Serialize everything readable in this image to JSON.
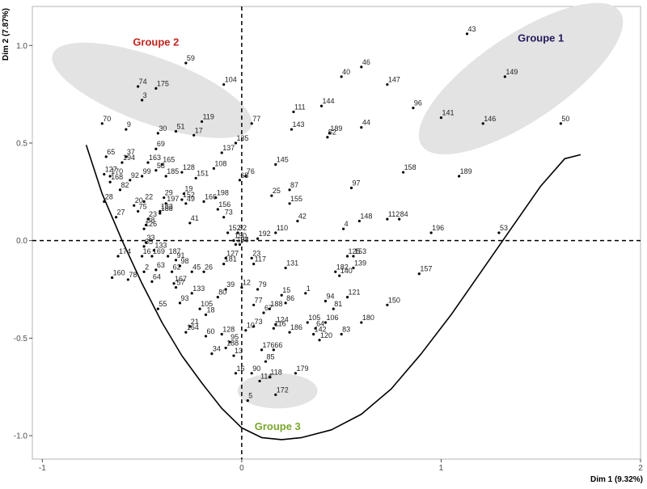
{
  "chart_data": {
    "type": "scatter",
    "xlabel": "Dim 1 (9.32%)",
    "ylabel": "Dim 2 (7.87%)",
    "xlim": [
      -1.05,
      2.0
    ],
    "ylim": [
      -1.12,
      1.2
    ],
    "x_ticks": [
      "-1",
      "0",
      "1",
      "2"
    ],
    "x_tick_values": [
      -1,
      0,
      1,
      2
    ],
    "y_ticks": [
      "-1.0",
      "-0.5",
      "0.0",
      "0.5",
      "1.0"
    ],
    "y_tick_values": [
      -1,
      -0.5,
      0,
      0.5,
      1
    ],
    "grid": false,
    "colors": {
      "point": "#000000",
      "ellipse_fill": "#e3e3e3",
      "groupe1": "#27185e",
      "groupe2": "#c0251d",
      "groupe3": "#79a82c",
      "frame": "#b5b5b5"
    },
    "points": [
      {
        "label": "43",
        "x": 1.13,
        "y": 1.06
      },
      {
        "label": "149",
        "x": 1.32,
        "y": 0.84
      },
      {
        "label": "50",
        "x": 1.6,
        "y": 0.6
      },
      {
        "label": "46",
        "x": 0.6,
        "y": 0.89
      },
      {
        "label": "40",
        "x": 0.5,
        "y": 0.84
      },
      {
        "label": "147",
        "x": 0.73,
        "y": 0.8
      },
      {
        "label": "96",
        "x": 0.86,
        "y": 0.68
      },
      {
        "label": "141",
        "x": 1.0,
        "y": 0.63
      },
      {
        "label": "146",
        "x": 1.21,
        "y": 0.6
      },
      {
        "label": "144",
        "x": 0.4,
        "y": 0.69
      },
      {
        "label": "111",
        "x": 0.26,
        "y": 0.66
      },
      {
        "label": "77",
        "x": 0.05,
        "y": 0.6
      },
      {
        "label": "44",
        "x": 0.6,
        "y": 0.58
      },
      {
        "label": "143",
        "x": 0.25,
        "y": 0.57
      },
      {
        "label": "189",
        "x": 0.44,
        "y": 0.55
      },
      {
        "label": "52",
        "x": 0.43,
        "y": 0.53
      },
      {
        "label": "145",
        "x": 0.17,
        "y": 0.39
      },
      {
        "label": "158",
        "x": 0.81,
        "y": 0.35
      },
      {
        "label": "189",
        "x": 1.09,
        "y": 0.33
      },
      {
        "label": "97",
        "x": 0.55,
        "y": 0.27
      },
      {
        "label": "87",
        "x": 0.24,
        "y": 0.26
      },
      {
        "label": "25",
        "x": 0.15,
        "y": 0.23
      },
      {
        "label": "155",
        "x": 0.24,
        "y": 0.19
      },
      {
        "label": "112",
        "x": 0.73,
        "y": 0.11
      },
      {
        "label": "84",
        "x": 0.79,
        "y": 0.11
      },
      {
        "label": "148",
        "x": 0.59,
        "y": 0.1
      },
      {
        "label": "42",
        "x": 0.28,
        "y": 0.1
      },
      {
        "label": "4",
        "x": 0.51,
        "y": 0.06
      },
      {
        "label": "196",
        "x": 0.95,
        "y": 0.04
      },
      {
        "label": "53",
        "x": 1.29,
        "y": 0.04
      },
      {
        "label": "110",
        "x": 0.17,
        "y": 0.04
      },
      {
        "label": "192",
        "x": 0.08,
        "y": 0.01
      },
      {
        "label": "59",
        "x": -0.28,
        "y": 0.91
      },
      {
        "label": "104",
        "x": -0.09,
        "y": 0.8
      },
      {
        "label": "74",
        "x": -0.52,
        "y": 0.79
      },
      {
        "label": "175",
        "x": -0.43,
        "y": 0.78
      },
      {
        "label": "3",
        "x": -0.5,
        "y": 0.72
      },
      {
        "label": "119",
        "x": -0.2,
        "y": 0.61
      },
      {
        "label": "70",
        "x": -0.7,
        "y": 0.6
      },
      {
        "label": "9",
        "x": -0.58,
        "y": 0.57
      },
      {
        "label": "30",
        "x": -0.42,
        "y": 0.55
      },
      {
        "label": "51",
        "x": -0.33,
        "y": 0.56
      },
      {
        "label": "17",
        "x": -0.24,
        "y": 0.54
      },
      {
        "label": "135",
        "x": -0.03,
        "y": 0.5
      },
      {
        "label": "137",
        "x": -0.1,
        "y": 0.45
      },
      {
        "label": "65",
        "x": -0.68,
        "y": 0.43
      },
      {
        "label": "37",
        "x": -0.58,
        "y": 0.43
      },
      {
        "label": "69",
        "x": -0.43,
        "y": 0.47
      },
      {
        "label": "194",
        "x": -0.6,
        "y": 0.4
      },
      {
        "label": "163",
        "x": -0.47,
        "y": 0.4
      },
      {
        "label": "165",
        "x": -0.4,
        "y": 0.39
      },
      {
        "label": "108",
        "x": -0.14,
        "y": 0.37
      },
      {
        "label": "58",
        "x": -0.43,
        "y": 0.36
      },
      {
        "label": "128",
        "x": -0.3,
        "y": 0.35
      },
      {
        "label": "127",
        "x": -0.69,
        "y": 0.34
      },
      {
        "label": "185",
        "x": -0.38,
        "y": 0.33
      },
      {
        "label": "99",
        "x": -0.5,
        "y": 0.33
      },
      {
        "label": "151",
        "x": -0.23,
        "y": 0.32
      },
      {
        "label": "170",
        "x": -0.66,
        "y": 0.33
      },
      {
        "label": "168",
        "x": -0.66,
        "y": 0.3
      },
      {
        "label": "92",
        "x": -0.56,
        "y": 0.31
      },
      {
        "label": "68",
        "x": -0.01,
        "y": 0.31
      },
      {
        "label": "76",
        "x": 0.02,
        "y": 0.33
      },
      {
        "label": "82",
        "x": -0.61,
        "y": 0.26
      },
      {
        "label": "19",
        "x": -0.29,
        "y": 0.24
      },
      {
        "label": "29",
        "x": -0.39,
        "y": 0.22
      },
      {
        "label": "198",
        "x": -0.13,
        "y": 0.22
      },
      {
        "label": "28",
        "x": -0.69,
        "y": 0.2
      },
      {
        "label": "22",
        "x": -0.49,
        "y": 0.2
      },
      {
        "label": "152",
        "x": -0.3,
        "y": 0.21
      },
      {
        "label": "166",
        "x": -0.19,
        "y": 0.2
      },
      {
        "label": "20",
        "x": -0.54,
        "y": 0.18
      },
      {
        "label": "197",
        "x": -0.38,
        "y": 0.19
      },
      {
        "label": "49",
        "x": -0.28,
        "y": 0.19
      },
      {
        "label": "156",
        "x": -0.12,
        "y": 0.16
      },
      {
        "label": "75",
        "x": -0.52,
        "y": 0.15
      },
      {
        "label": "183",
        "x": -0.41,
        "y": 0.15
      },
      {
        "label": "188",
        "x": -0.41,
        "y": 0.14
      },
      {
        "label": "73",
        "x": -0.09,
        "y": 0.12
      },
      {
        "label": "27",
        "x": -0.63,
        "y": 0.12
      },
      {
        "label": "23",
        "x": -0.47,
        "y": 0.11
      },
      {
        "label": "41",
        "x": -0.26,
        "y": 0.09
      },
      {
        "label": "38",
        "x": -0.48,
        "y": 0.08
      },
      {
        "label": "126",
        "x": -0.49,
        "y": 0.06
      },
      {
        "label": "152",
        "x": -0.07,
        "y": 0.04
      },
      {
        "label": "32",
        "x": -0.02,
        "y": 0.04
      },
      {
        "label": "190",
        "x": -0.04,
        "y": 0.0
      },
      {
        "label": "193",
        "x": -0.03,
        "y": -0.02
      },
      {
        "label": "54",
        "x": -0.01,
        "y": -0.02
      },
      {
        "label": "33",
        "x": -0.48,
        "y": -0.01
      },
      {
        "label": "35",
        "x": -0.49,
        "y": -0.03
      },
      {
        "label": "133",
        "x": -0.44,
        "y": -0.05
      },
      {
        "label": "174",
        "x": -0.62,
        "y": -0.08
      },
      {
        "label": "16",
        "x": -0.5,
        "y": -0.08
      },
      {
        "label": "169",
        "x": -0.45,
        "y": -0.08
      },
      {
        "label": "187",
        "x": -0.37,
        "y": -0.08
      },
      {
        "label": "91",
        "x": -0.33,
        "y": -0.1
      },
      {
        "label": "127",
        "x": -0.08,
        "y": -0.09
      },
      {
        "label": "181",
        "x": -0.09,
        "y": -0.12
      },
      {
        "label": "23",
        "x": 0.05,
        "y": -0.09
      },
      {
        "label": "117",
        "x": 0.06,
        "y": -0.12
      },
      {
        "label": "131",
        "x": 0.22,
        "y": -0.14
      },
      {
        "label": "125",
        "x": 0.53,
        "y": -0.08
      },
      {
        "label": "153",
        "x": 0.56,
        "y": -0.08
      },
      {
        "label": "139",
        "x": 0.56,
        "y": -0.14
      },
      {
        "label": "182",
        "x": 0.47,
        "y": -0.16
      },
      {
        "label": "140",
        "x": 0.49,
        "y": -0.18
      },
      {
        "label": "157",
        "x": 0.89,
        "y": -0.17
      },
      {
        "label": "160",
        "x": -0.65,
        "y": -0.19
      },
      {
        "label": "2",
        "x": -0.49,
        "y": -0.16
      },
      {
        "label": "63",
        "x": -0.43,
        "y": -0.15
      },
      {
        "label": "62",
        "x": -0.35,
        "y": -0.16
      },
      {
        "label": "98",
        "x": -0.31,
        "y": -0.13
      },
      {
        "label": "45",
        "x": -0.25,
        "y": -0.16
      },
      {
        "label": "26",
        "x": -0.19,
        "y": -0.16
      },
      {
        "label": "78",
        "x": -0.57,
        "y": -0.2
      },
      {
        "label": "64",
        "x": -0.45,
        "y": -0.21
      },
      {
        "label": "167",
        "x": -0.34,
        "y": -0.22
      },
      {
        "label": "57",
        "x": -0.33,
        "y": -0.24
      },
      {
        "label": "12",
        "x": 0.0,
        "y": -0.24
      },
      {
        "label": "39",
        "x": -0.08,
        "y": -0.25
      },
      {
        "label": "79",
        "x": 0.08,
        "y": -0.25
      },
      {
        "label": "15",
        "x": 0.2,
        "y": -0.28
      },
      {
        "label": "1",
        "x": 0.32,
        "y": -0.27
      },
      {
        "label": "121",
        "x": 0.53,
        "y": -0.29
      },
      {
        "label": "133",
        "x": -0.25,
        "y": -0.27
      },
      {
        "label": "80",
        "x": -0.12,
        "y": -0.29
      },
      {
        "label": "93",
        "x": -0.31,
        "y": -0.32
      },
      {
        "label": "86",
        "x": 0.22,
        "y": -0.32
      },
      {
        "label": "94",
        "x": 0.42,
        "y": -0.31
      },
      {
        "label": "150",
        "x": 0.73,
        "y": -0.33
      },
      {
        "label": "55",
        "x": -0.42,
        "y": -0.35
      },
      {
        "label": "18",
        "x": -0.18,
        "y": -0.38
      },
      {
        "label": "105",
        "x": -0.21,
        "y": -0.35
      },
      {
        "label": "77",
        "x": 0.06,
        "y": -0.33
      },
      {
        "label": "188",
        "x": 0.14,
        "y": -0.35
      },
      {
        "label": "81",
        "x": 0.46,
        "y": -0.35
      },
      {
        "label": "67",
        "x": 0.11,
        "y": -0.37
      },
      {
        "label": "106",
        "x": 0.42,
        "y": -0.42
      },
      {
        "label": "180",
        "x": 0.6,
        "y": -0.42
      },
      {
        "label": "21",
        "x": -0.26,
        "y": -0.44
      },
      {
        "label": "124",
        "x": 0.17,
        "y": -0.43
      },
      {
        "label": "105",
        "x": 0.33,
        "y": -0.42
      },
      {
        "label": "10",
        "x": 0.02,
        "y": -0.46
      },
      {
        "label": "73",
        "x": 0.06,
        "y": -0.44
      },
      {
        "label": "116",
        "x": 0.16,
        "y": -0.45
      },
      {
        "label": "186",
        "x": 0.24,
        "y": -0.47
      },
      {
        "label": "64",
        "x": 0.37,
        "y": -0.45
      },
      {
        "label": "142",
        "x": 0.36,
        "y": -0.48
      },
      {
        "label": "83",
        "x": 0.5,
        "y": -0.48
      },
      {
        "label": "120",
        "x": 0.39,
        "y": -0.51
      },
      {
        "label": "164",
        "x": -0.28,
        "y": -0.47
      },
      {
        "label": "60",
        "x": -0.18,
        "y": -0.49
      },
      {
        "label": "128",
        "x": -0.1,
        "y": -0.48
      },
      {
        "label": "95",
        "x": -0.06,
        "y": -0.52
      },
      {
        "label": "188",
        "x": -0.08,
        "y": -0.55
      },
      {
        "label": "176",
        "x": 0.1,
        "y": -0.56
      },
      {
        "label": "66",
        "x": 0.16,
        "y": -0.56
      },
      {
        "label": "34",
        "x": -0.15,
        "y": -0.58
      },
      {
        "label": "13",
        "x": -0.04,
        "y": -0.59
      },
      {
        "label": "85",
        "x": 0.12,
        "y": -0.62
      },
      {
        "label": "16",
        "x": -0.03,
        "y": -0.68
      },
      {
        "label": "90",
        "x": 0.05,
        "y": -0.68
      },
      {
        "label": "118",
        "x": 0.14,
        "y": -0.7
      },
      {
        "label": "179",
        "x": 0.27,
        "y": -0.68
      },
      {
        "label": "114",
        "x": 0.09,
        "y": -0.72
      },
      {
        "label": "5",
        "x": 0.03,
        "y": -0.82
      },
      {
        "label": "172",
        "x": 0.17,
        "y": -0.79
      }
    ],
    "groups": [
      {
        "name": "Groupe 1",
        "cx": 1.4,
        "cy": 0.83,
        "rx": 0.6,
        "ry": 0.22,
        "angle": -34,
        "label_x": 1.5,
        "label_y": 1.02,
        "color_key": "groupe1"
      },
      {
        "name": "Groupe 2",
        "cx": -0.45,
        "cy": 0.77,
        "rx": 0.53,
        "ry": 0.17,
        "angle": 20,
        "label_x": -0.43,
        "label_y": 1.0,
        "color_key": "groupe2"
      },
      {
        "name": "Groupe 3",
        "cx": 0.18,
        "cy": -0.77,
        "rx": 0.2,
        "ry": 0.09,
        "angle": 0,
        "label_x": 0.18,
        "label_y": -0.97,
        "color_key": "groupe3"
      }
    ],
    "curve": {
      "x": [
        -0.78,
        -0.7,
        -0.6,
        -0.5,
        -0.4,
        -0.3,
        -0.2,
        -0.1,
        0.0,
        0.1,
        0.2,
        0.3,
        0.45,
        0.6,
        0.75,
        0.9,
        1.05,
        1.2,
        1.35,
        1.5,
        1.62,
        1.7
      ],
      "y": [
        0.49,
        0.24,
        0.0,
        -0.22,
        -0.42,
        -0.59,
        -0.73,
        -0.86,
        -0.96,
        -1.01,
        -1.02,
        -1.01,
        -0.97,
        -0.89,
        -0.76,
        -0.58,
        -0.38,
        -0.16,
        0.06,
        0.28,
        0.42,
        0.44
      ]
    }
  }
}
